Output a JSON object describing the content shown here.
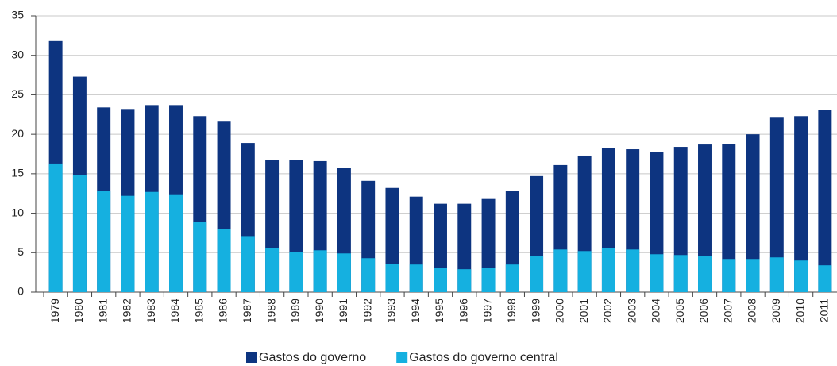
{
  "chart_data": {
    "type": "bar",
    "overlap": true,
    "categories": [
      "1979",
      "1980",
      "1981",
      "1982",
      "1983",
      "1984",
      "1985",
      "1986",
      "1987",
      "1988",
      "1989",
      "1990",
      "1991",
      "1992",
      "1993",
      "1994",
      "1995",
      "1996",
      "1997",
      "1998",
      "1999",
      "2000",
      "2001",
      "2002",
      "2003",
      "2004",
      "2005",
      "2006",
      "2007",
      "2008",
      "2009",
      "2010",
      "2011"
    ],
    "series": [
      {
        "name": "Gastos do governo",
        "color": "#0d3480",
        "values": [
          31.8,
          27.3,
          23.4,
          23.2,
          23.7,
          23.7,
          22.3,
          21.6,
          18.9,
          16.7,
          16.7,
          16.6,
          15.7,
          14.1,
          13.2,
          12.1,
          11.2,
          11.2,
          11.8,
          12.8,
          14.7,
          16.1,
          17.3,
          18.3,
          18.1,
          17.8,
          18.4,
          18.7,
          18.8,
          20.0,
          22.2,
          22.3,
          23.1
        ]
      },
      {
        "name": "Gastos do governo central",
        "color": "#15b0e0",
        "values": [
          16.3,
          14.8,
          12.8,
          12.2,
          12.7,
          12.4,
          8.9,
          8.0,
          7.1,
          5.6,
          5.1,
          5.3,
          4.9,
          4.3,
          3.6,
          3.5,
          3.1,
          2.9,
          3.1,
          3.5,
          4.6,
          5.4,
          5.2,
          5.6,
          5.4,
          4.8,
          4.7,
          4.6,
          4.2,
          4.2,
          4.4,
          4.0,
          3.4
        ]
      }
    ],
    "ylim": [
      0,
      35
    ],
    "yticks": [
      0,
      5,
      10,
      15,
      20,
      25,
      30,
      35
    ],
    "grid": true
  }
}
